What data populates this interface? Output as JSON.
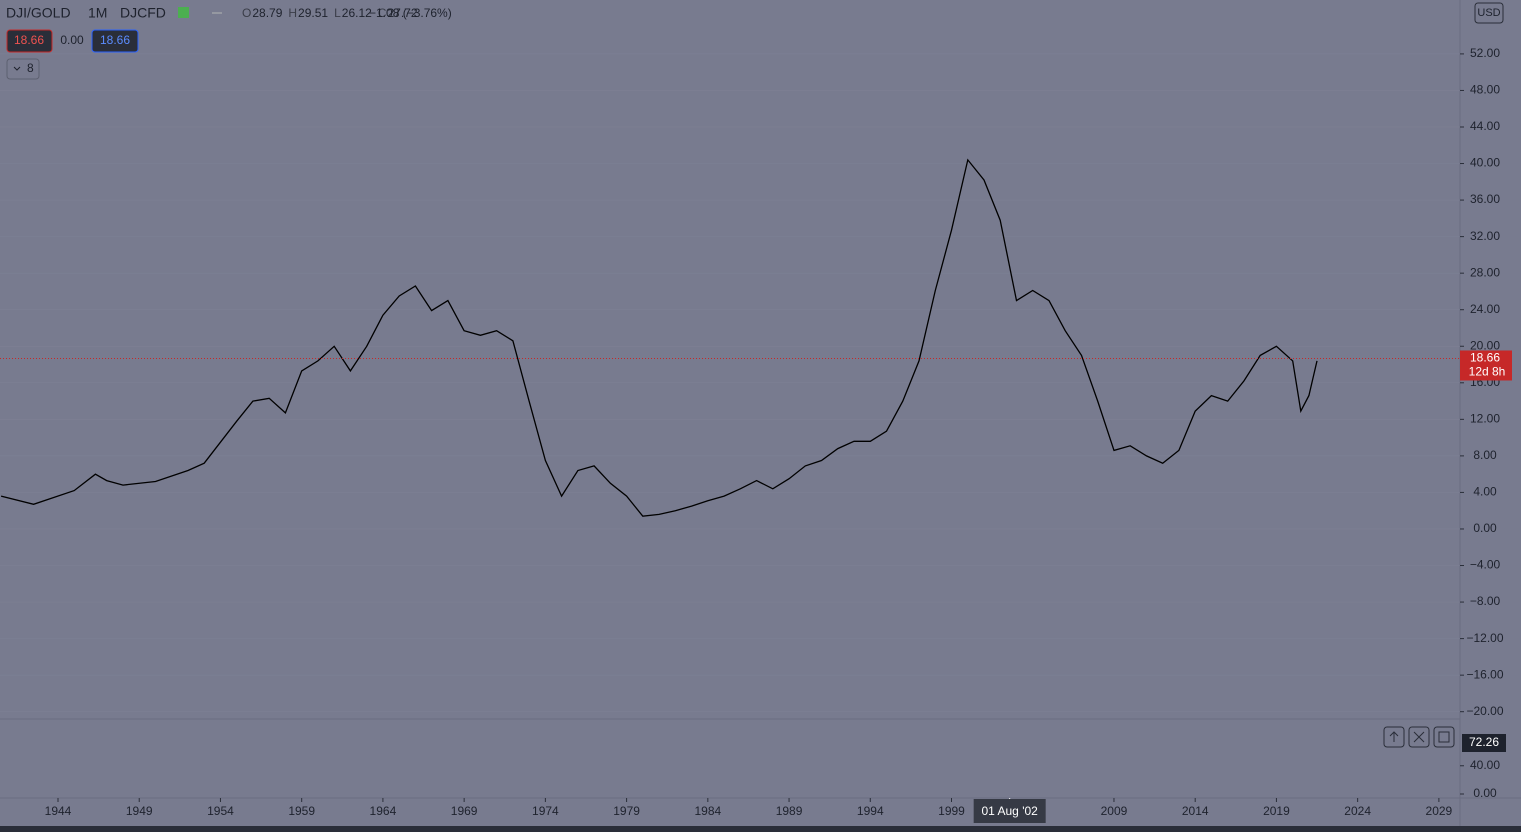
{
  "header": {
    "symbol": "DJI/GOLD",
    "interval": "1M",
    "source": "DJCFD",
    "ohlc": [
      {
        "key": "O",
        "value": "28.79"
      },
      {
        "key": "H",
        "value": "29.51"
      },
      {
        "key": "L",
        "value": "26.12"
      },
      {
        "key": "C",
        "value": "27.72"
      }
    ],
    "change": "−1.08 (−3.76%)",
    "bid": "18.66",
    "spread": "0.00",
    "ask": "18.66",
    "indicators_count": "8",
    "currency": "USD"
  },
  "chart_data": {
    "type": "line",
    "series": [
      {
        "name": "DJI/GOLD",
        "color": "#000000",
        "x": [
          1940.5,
          1942.5,
          1945,
          1946.3,
          1947,
          1948,
          1950,
          1952,
          1953,
          1955,
          1956,
          1957,
          1958,
          1959,
          1960,
          1961,
          1962,
          1963,
          1964,
          1965,
          1966,
          1967,
          1968,
          1969,
          1970,
          1971,
          1972,
          1973,
          1974,
          1975,
          1976,
          1977,
          1978,
          1979,
          1980,
          1981,
          1982,
          1983,
          1984,
          1985,
          1986,
          1987,
          1988,
          1989,
          1990,
          1991,
          1992,
          1993,
          1994,
          1995,
          1996,
          1997,
          1998,
          1999,
          2000,
          2001,
          2002,
          2003,
          2004,
          2005,
          2006,
          2007,
          2008,
          2009,
          2010,
          2011,
          2012,
          2013,
          2014,
          2015,
          2016,
          2017,
          2018,
          2019,
          2020,
          2020.5,
          2021,
          2021.5
        ],
        "values": [
          3.6,
          2.7,
          4.2,
          6,
          5.3,
          4.8,
          5.2,
          6.4,
          7.2,
          11.8,
          14,
          14.3,
          12.7,
          17.3,
          18.4,
          20,
          17.3,
          20,
          23.4,
          25.5,
          26.6,
          23.9,
          25,
          21.7,
          21.2,
          21.7,
          20.6,
          14,
          7.5,
          3.6,
          6.4,
          6.9,
          5,
          3.6,
          1.4,
          1.6,
          2,
          2.5,
          3.1,
          3.6,
          4.4,
          5.3,
          4.4,
          5.5,
          6.9,
          7.5,
          8.8,
          9.6,
          9.6,
          10.7,
          14,
          18.4,
          26.1,
          32.7,
          40.4,
          38.2,
          33.8,
          25,
          26.1,
          25,
          21.7,
          19,
          14,
          8.6,
          9.1,
          8,
          7.2,
          8.6,
          12.9,
          14.6,
          14,
          16.2,
          19,
          20,
          18.4,
          12.9,
          14.6,
          18.4
        ]
      }
    ],
    "xlim": [
      1940.43,
      2030.3
    ],
    "xticks": [
      1944,
      1949,
      1954,
      1959,
      1964,
      1969,
      1974,
      1979,
      1984,
      1989,
      1994,
      1999,
      2009,
      2014,
      2019,
      2024,
      2029
    ],
    "ylim": [
      -20.8,
      57.9
    ],
    "yticks": [
      {
        "value": -20,
        "label": "−20.00"
      },
      {
        "value": -16,
        "label": "−16.00"
      },
      {
        "value": -12,
        "label": "−12.00"
      },
      {
        "value": -8,
        "label": "−8.00"
      },
      {
        "value": -4,
        "label": "−4.00"
      },
      {
        "value": 0,
        "label": "0.00"
      },
      {
        "value": 4,
        "label": "4.00"
      },
      {
        "value": 8,
        "label": "8.00"
      },
      {
        "value": 12,
        "label": "12.00"
      },
      {
        "value": 16,
        "label": "16.00"
      },
      {
        "value": 20,
        "label": "20.00"
      },
      {
        "value": 24,
        "label": "24.00"
      },
      {
        "value": 28,
        "label": "28.00"
      },
      {
        "value": 32,
        "label": "32.00"
      },
      {
        "value": 36,
        "label": "36.00"
      },
      {
        "value": 40,
        "label": "40.00"
      },
      {
        "value": 44,
        "label": "44.00"
      },
      {
        "value": 48,
        "label": "48.00"
      },
      {
        "value": 52,
        "label": "52.00"
      }
    ],
    "price_line": {
      "value": 18.66,
      "label": "18.66",
      "countdown": "12d 8h",
      "color": "#c62828"
    },
    "crosshair": {
      "value": 2002.58,
      "label": "01 Aug '02"
    },
    "lower_pane": {
      "ylim": [
        0,
        102
      ],
      "yticks": [
        {
          "value": 0,
          "label": "0.00"
        },
        {
          "value": 40,
          "label": "40.00"
        }
      ],
      "last": {
        "value": 72.26,
        "label": "72.26"
      }
    }
  }
}
